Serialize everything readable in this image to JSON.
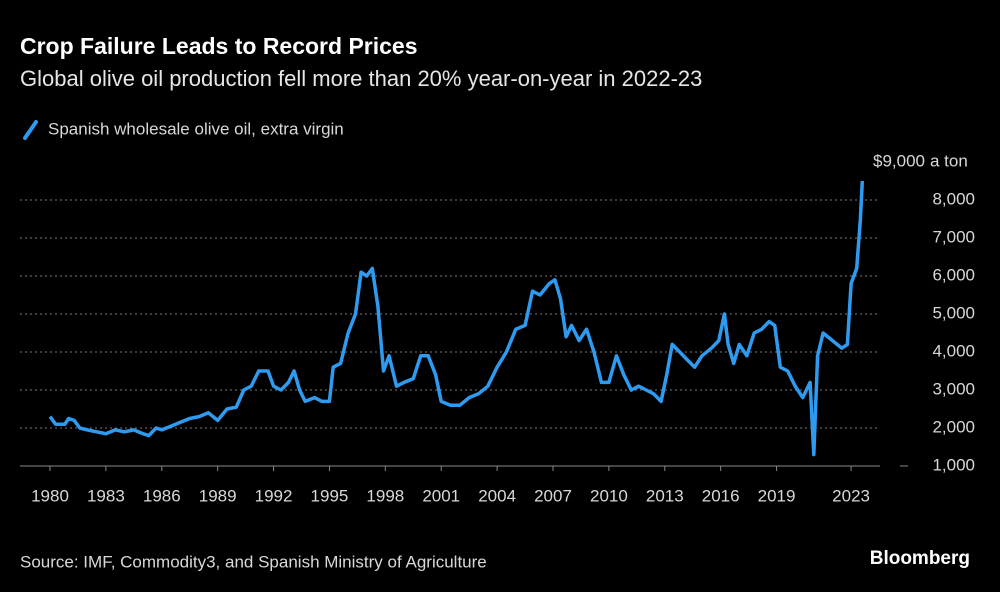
{
  "chart_data": {
    "type": "line",
    "title": "Crop Failure Leads to Record Prices",
    "subtitle": "Global olive oil production fell more than 20% year-on-year in 2022-23",
    "source": "Source: IMF, Commodity3, and Spanish Ministry of Agriculture",
    "brand": "Bloomberg",
    "y_unit": "a ton",
    "grid": true,
    "legend": "top-left",
    "x": [
      1980.0,
      1980.3,
      1980.8,
      1981.0,
      1981.3,
      1981.6,
      1982.0,
      1982.5,
      1983.0,
      1983.5,
      1984.0,
      1984.5,
      1985.0,
      1985.3,
      1985.7,
      1986.0,
      1986.5,
      1987.0,
      1987.5,
      1988.0,
      1988.5,
      1989.0,
      1989.5,
      1990.0,
      1990.4,
      1990.8,
      1991.2,
      1991.7,
      1992.0,
      1992.4,
      1992.8,
      1993.1,
      1993.4,
      1993.7,
      1994.2,
      1994.6,
      1995.0,
      1995.2,
      1995.6,
      1996.0,
      1996.4,
      1996.7,
      1997.0,
      1997.3,
      1997.6,
      1997.9,
      1998.2,
      1998.6,
      1999.0,
      1999.5,
      1999.9,
      2000.3,
      2000.7,
      2001.0,
      2001.5,
      2002.0,
      2002.5,
      2003.0,
      2003.5,
      2004.0,
      2004.5,
      2005.0,
      2005.5,
      2005.9,
      2006.3,
      2006.8,
      2007.1,
      2007.4,
      2007.7,
      2008.0,
      2008.4,
      2008.8,
      2009.2,
      2009.6,
      2010.0,
      2010.4,
      2010.8,
      2011.2,
      2011.6,
      2012.0,
      2012.4,
      2012.8,
      2013.1,
      2013.4,
      2013.8,
      2014.2,
      2014.6,
      2015.0,
      2015.5,
      2015.9,
      2016.2,
      2016.4,
      2016.7,
      2017.0,
      2017.4,
      2017.8,
      2018.2,
      2018.6,
      2018.9,
      2019.2,
      2019.6,
      2020.0,
      2020.4,
      2020.8,
      2021.0,
      2021.2,
      2021.5,
      2022.0,
      2022.5,
      2022.8,
      2023.0,
      2023.3,
      2023.5,
      2023.6
    ],
    "series": [
      {
        "name": "Spanish wholesale olive oil, extra virgin",
        "color": "#2e9bf0",
        "values": [
          2300,
          2100,
          2100,
          2250,
          2200,
          2000,
          1950,
          1900,
          1850,
          1950,
          1900,
          1950,
          1850,
          1800,
          2000,
          1950,
          2050,
          2150,
          2250,
          2300,
          2400,
          2200,
          2500,
          2550,
          3000,
          3100,
          3500,
          3500,
          3100,
          3000,
          3200,
          3500,
          3000,
          2700,
          2800,
          2700,
          2700,
          3600,
          3700,
          4500,
          5000,
          6100,
          6000,
          6200,
          5200,
          3500,
          3900,
          3100,
          3200,
          3300,
          3900,
          3900,
          3400,
          2700,
          2600,
          2600,
          2800,
          2900,
          3100,
          3600,
          4000,
          4600,
          4700,
          5600,
          5500,
          5800,
          5900,
          5400,
          4400,
          4700,
          4300,
          4600,
          4000,
          3200,
          3200,
          3900,
          3400,
          3000,
          3100,
          3000,
          2900,
          2700,
          3400,
          4200,
          4000,
          3800,
          3600,
          3900,
          4100,
          4300,
          5000,
          4200,
          3700,
          4200,
          3900,
          4500,
          4600,
          4800,
          4700,
          3600,
          3500,
          3100,
          2800,
          3200,
          1300,
          3900,
          4500,
          4300,
          4100,
          4200,
          5800,
          6200,
          7500,
          8500
        ]
      }
    ],
    "xlim": [
      1980,
      2026
    ],
    "xticks": [
      1980,
      1983,
      1986,
      1989,
      1992,
      1995,
      1998,
      2001,
      2004,
      2007,
      2010,
      2013,
      2016,
      2019,
      2023
    ],
    "ylim": [
      1000,
      9000
    ],
    "yticks": [
      {
        "value": 1000,
        "label": "1,000"
      },
      {
        "value": 2000,
        "label": "2,000"
      },
      {
        "value": 3000,
        "label": "3,000"
      },
      {
        "value": 4000,
        "label": "4,000"
      },
      {
        "value": 5000,
        "label": "5,000"
      },
      {
        "value": 6000,
        "label": "6,000"
      },
      {
        "value": 7000,
        "label": "7,000"
      },
      {
        "value": 8000,
        "label": "8,000"
      },
      {
        "value": 9000,
        "label": "$9,000"
      }
    ]
  }
}
